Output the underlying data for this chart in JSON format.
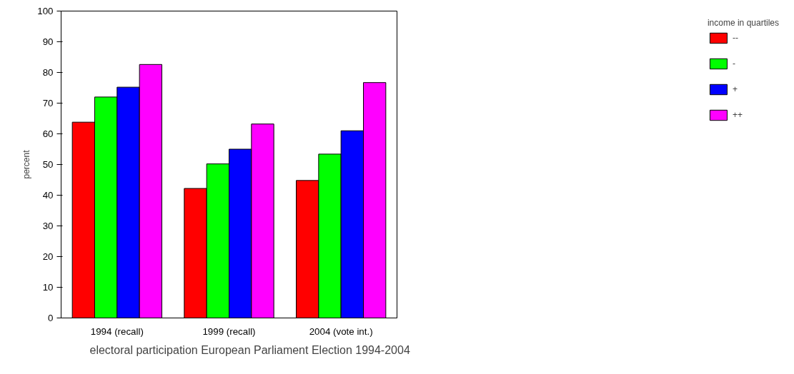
{
  "chart_data": {
    "type": "bar",
    "title": "electoral participation European Parliament Election 1994-2004",
    "ylabel": "percent",
    "legend_title": "income in quartiles",
    "categories": [
      "1994 (recall)",
      "1999 (recall)",
      "2004 (vote int.)"
    ],
    "series": [
      {
        "name": "--",
        "color": "#ff0000",
        "values": [
          63.8,
          42.2,
          44.8
        ]
      },
      {
        "name": "-",
        "color": "#00ff00",
        "values": [
          72,
          50.2,
          53.4
        ]
      },
      {
        "name": "+",
        "color": "#0000ff",
        "values": [
          75.2,
          55,
          61
        ]
      },
      {
        "name": "++",
        "color": "#ff00ff",
        "values": [
          82.6,
          63.2,
          76.7
        ]
      }
    ],
    "ylim": [
      0,
      100
    ],
    "yticks": [
      0,
      10,
      20,
      30,
      40,
      50,
      60,
      70,
      80,
      90,
      100
    ],
    "grid": false,
    "legend": "right"
  }
}
